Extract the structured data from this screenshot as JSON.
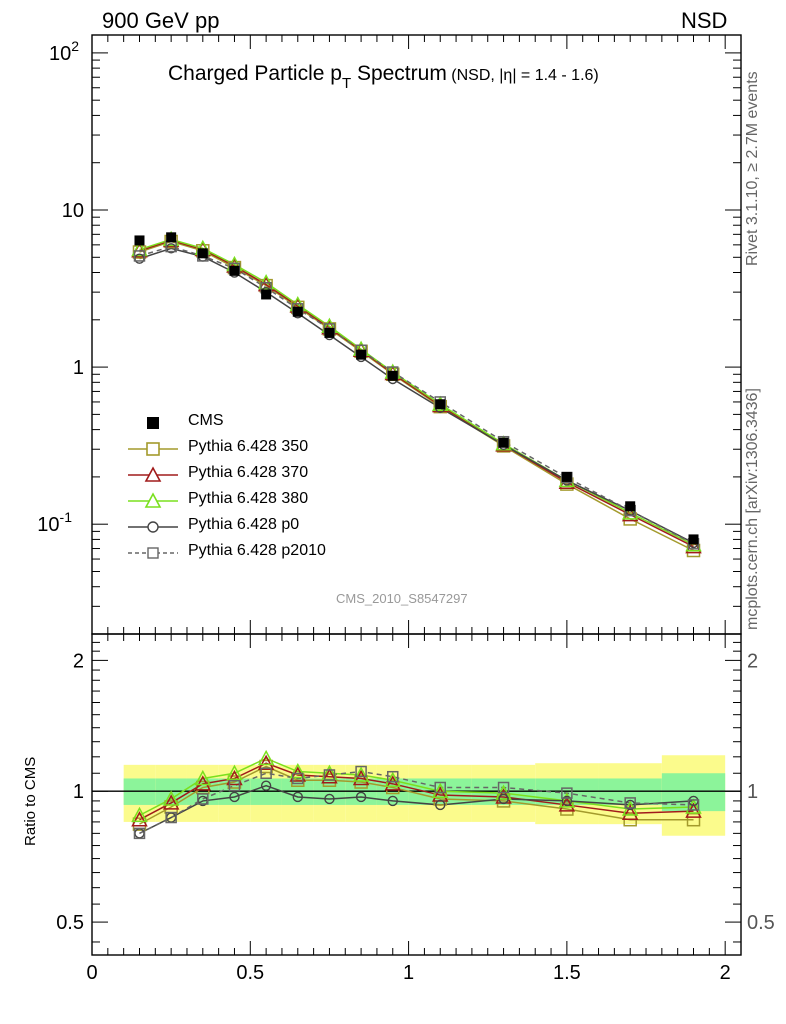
{
  "header": {
    "left": "900 GeV pp",
    "right": "NSD"
  },
  "side_labels": {
    "rivet": "Rivet 3.1.10, ≥ 2.7M events",
    "source": "mcplots.cern.ch [arXiv:1306.3436]"
  },
  "analysis_id": "CMS_2010_S8547297",
  "chart_data": [
    {
      "type": "line",
      "title": "Charged Particle p_T Spectrum",
      "title_parts": {
        "main": "Charged Particle p",
        "sub": "T",
        "rest": " Spectrum",
        "note": "(NSD, |η| = 1.4 - 1.6)"
      },
      "x_ticks": [
        0,
        0.5,
        1,
        1.5,
        2
      ],
      "x_tick_labels": [
        "0",
        "0.5",
        "1",
        "1.5",
        "2"
      ],
      "xlim": [
        0,
        2.05
      ],
      "yscale": "log",
      "ylim": [
        0.02,
        130
      ],
      "y_tick_labels": [
        "10^-1",
        "1",
        "10",
        "10^2"
      ],
      "x": [
        0.15,
        0.25,
        0.35,
        0.45,
        0.55,
        0.65,
        0.75,
        0.85,
        0.95,
        1.1,
        1.3,
        1.5,
        1.7,
        1.9
      ],
      "series": [
        {
          "name": "CMS",
          "style": "data",
          "color": "#000000",
          "values": [
            6.4,
            6.7,
            5.3,
            4.1,
            2.9,
            2.25,
            1.65,
            1.2,
            0.88,
            0.58,
            0.33,
            0.2,
            0.13,
            0.08
          ]
        },
        {
          "name": "Pythia 6.428 350",
          "style": "square-open",
          "color": "#a39a2c",
          "dashed": false,
          "values": [
            5.4,
            6.3,
            5.5,
            4.3,
            3.3,
            2.4,
            1.75,
            1.26,
            0.9,
            0.56,
            0.315,
            0.18,
            0.108,
            0.068
          ]
        },
        {
          "name": "Pythia 6.428 370",
          "style": "triangle-open",
          "color": "#a11b1b",
          "dashed": false,
          "values": [
            5.5,
            6.4,
            5.6,
            4.4,
            3.35,
            2.45,
            1.78,
            1.28,
            0.91,
            0.57,
            0.32,
            0.185,
            0.115,
            0.072
          ]
        },
        {
          "name": "Pythia 6.428 380",
          "style": "triangle-open",
          "color": "#7ae01e",
          "dashed": false,
          "values": [
            5.6,
            6.5,
            5.7,
            4.5,
            3.45,
            2.5,
            1.82,
            1.3,
            0.93,
            0.58,
            0.325,
            0.19,
            0.118,
            0.074
          ]
        },
        {
          "name": "Pythia 6.428 p0",
          "style": "circle-open",
          "color": "#444444",
          "dashed": false,
          "values": [
            4.9,
            5.7,
            5.05,
            4.0,
            3.0,
            2.2,
            1.6,
            1.16,
            0.84,
            0.55,
            0.32,
            0.19,
            0.122,
            0.076
          ]
        },
        {
          "name": "Pythia 6.428 p2010",
          "style": "square-open",
          "color": "#666666",
          "dashed": true,
          "values": [
            5.1,
            5.85,
            5.1,
            4.25,
            3.2,
            2.35,
            1.75,
            1.28,
            0.93,
            0.6,
            0.335,
            0.198,
            0.122,
            0.075
          ]
        }
      ]
    },
    {
      "type": "line",
      "ylabel": "Ratio to CMS",
      "yscale": "log",
      "ylim": [
        0.42,
        2.3
      ],
      "y_ticks": [
        0.5,
        1,
        2
      ],
      "y_tick_labels": [
        "0.5",
        "1",
        "2"
      ],
      "x_edges": [
        0.1,
        0.2,
        0.3,
        0.4,
        0.5,
        0.6,
        0.7,
        0.8,
        0.9,
        1.0,
        1.2,
        1.4,
        1.6,
        1.8,
        2.0
      ],
      "band_inner": [
        0.07,
        0.07,
        0.07,
        0.07,
        0.07,
        0.07,
        0.07,
        0.07,
        0.07,
        0.07,
        0.07,
        0.07,
        0.07,
        0.1
      ],
      "band_outer": [
        0.15,
        0.15,
        0.15,
        0.15,
        0.15,
        0.15,
        0.15,
        0.15,
        0.15,
        0.15,
        0.15,
        0.16,
        0.16,
        0.21
      ],
      "x": [
        0.15,
        0.25,
        0.35,
        0.45,
        0.55,
        0.65,
        0.75,
        0.85,
        0.95,
        1.1,
        1.3,
        1.5,
        1.7,
        1.9
      ],
      "series": [
        {
          "name": "Pythia 6.428 350",
          "style": "square-open",
          "color": "#a39a2c",
          "dashed": false,
          "values": [
            0.84,
            0.92,
            1.02,
            1.05,
            1.14,
            1.06,
            1.06,
            1.05,
            1.02,
            0.96,
            0.95,
            0.91,
            0.86,
            0.86
          ]
        },
        {
          "name": "Pythia 6.428 370",
          "style": "triangle-open",
          "color": "#a11b1b",
          "dashed": false,
          "values": [
            0.86,
            0.94,
            1.04,
            1.07,
            1.16,
            1.09,
            1.08,
            1.07,
            1.04,
            0.98,
            0.97,
            0.93,
            0.89,
            0.9
          ]
        },
        {
          "name": "Pythia 6.428 380",
          "style": "triangle-open",
          "color": "#7ae01e",
          "dashed": false,
          "values": [
            0.88,
            0.96,
            1.07,
            1.1,
            1.19,
            1.11,
            1.1,
            1.09,
            1.06,
            1.0,
            0.99,
            0.95,
            0.91,
            0.92
          ]
        },
        {
          "name": "Pythia 6.428 p0",
          "style": "circle-open",
          "color": "#444444",
          "dashed": false,
          "values": [
            0.8,
            0.87,
            0.95,
            0.97,
            1.03,
            0.97,
            0.96,
            0.97,
            0.95,
            0.93,
            0.96,
            0.95,
            0.93,
            0.95
          ]
        },
        {
          "name": "Pythia 6.428 p2010",
          "style": "square-open",
          "color": "#666666",
          "dashed": true,
          "values": [
            0.8,
            0.87,
            0.96,
            1.03,
            1.1,
            1.07,
            1.09,
            1.11,
            1.08,
            1.02,
            1.02,
            0.99,
            0.94,
            0.93
          ]
        }
      ]
    }
  ]
}
